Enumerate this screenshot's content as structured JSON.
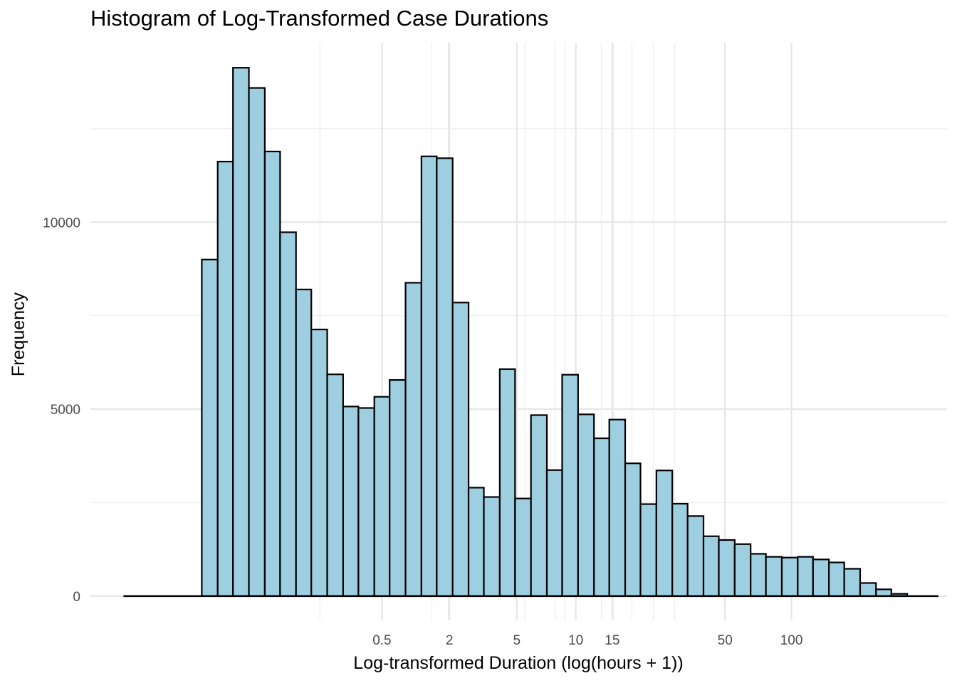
{
  "chart_data": {
    "type": "bar",
    "title": "Histogram of Log-Transformed Case Durations",
    "xlabel": "Log-transformed Duration (log(hours + 1))",
    "ylabel": "Frequency",
    "x_scale": "log (hours + 1)",
    "x_ticks": [
      {
        "label": "0.5",
        "value": 0.5
      },
      {
        "label": "2",
        "value": 2
      },
      {
        "label": "5",
        "value": 5
      },
      {
        "label": "10",
        "value": 10
      },
      {
        "label": "15",
        "value": 15
      },
      {
        "label": "50",
        "value": 50
      },
      {
        "label": "100",
        "value": 100
      }
    ],
    "y_ticks": [
      {
        "label": "0",
        "value": 0
      },
      {
        "label": "5000",
        "value": 5000
      },
      {
        "label": "10000",
        "value": 10000
      }
    ],
    "ylim": [
      -650,
      14800
    ],
    "bin_edges_log": [
      -3.96,
      -3.7,
      -3.45,
      -3.19,
      -2.94,
      -2.68,
      -2.42,
      -2.17,
      -1.91,
      -1.65,
      -1.4,
      -1.14,
      -0.89,
      -0.63,
      -0.37,
      -0.12,
      0.14,
      0.39,
      0.65,
      0.91,
      1.16,
      1.42,
      1.68,
      1.93,
      2.19,
      2.44,
      2.7,
      2.96,
      3.21,
      3.47,
      3.73,
      3.98,
      4.24,
      4.49,
      4.75,
      5.01,
      5.26,
      5.52,
      5.77,
      6.03,
      6.29,
      6.54,
      6.8,
      7.06,
      7.31,
      7.57,
      7.82,
      8.08,
      8.34,
      8.59,
      8.85,
      9.11,
      9.36
    ],
    "values": [
      0,
      0,
      0,
      0,
      0,
      9000,
      11620,
      14130,
      13590,
      11890,
      9730,
      8200,
      7130,
      5930,
      5070,
      5030,
      5330,
      5780,
      8380,
      11760,
      11710,
      7850,
      2900,
      2650,
      6070,
      2610,
      4840,
      3370,
      5920,
      4860,
      4220,
      4720,
      3550,
      2460,
      3360,
      2470,
      2140,
      1600,
      1500,
      1390,
      1130,
      1050,
      1030,
      1050,
      980,
      900,
      730,
      350,
      180,
      60,
      0,
      0
    ],
    "grid": true,
    "legend": "none",
    "bar_fill": "#9ecfe1",
    "bar_stroke": "#000000"
  }
}
